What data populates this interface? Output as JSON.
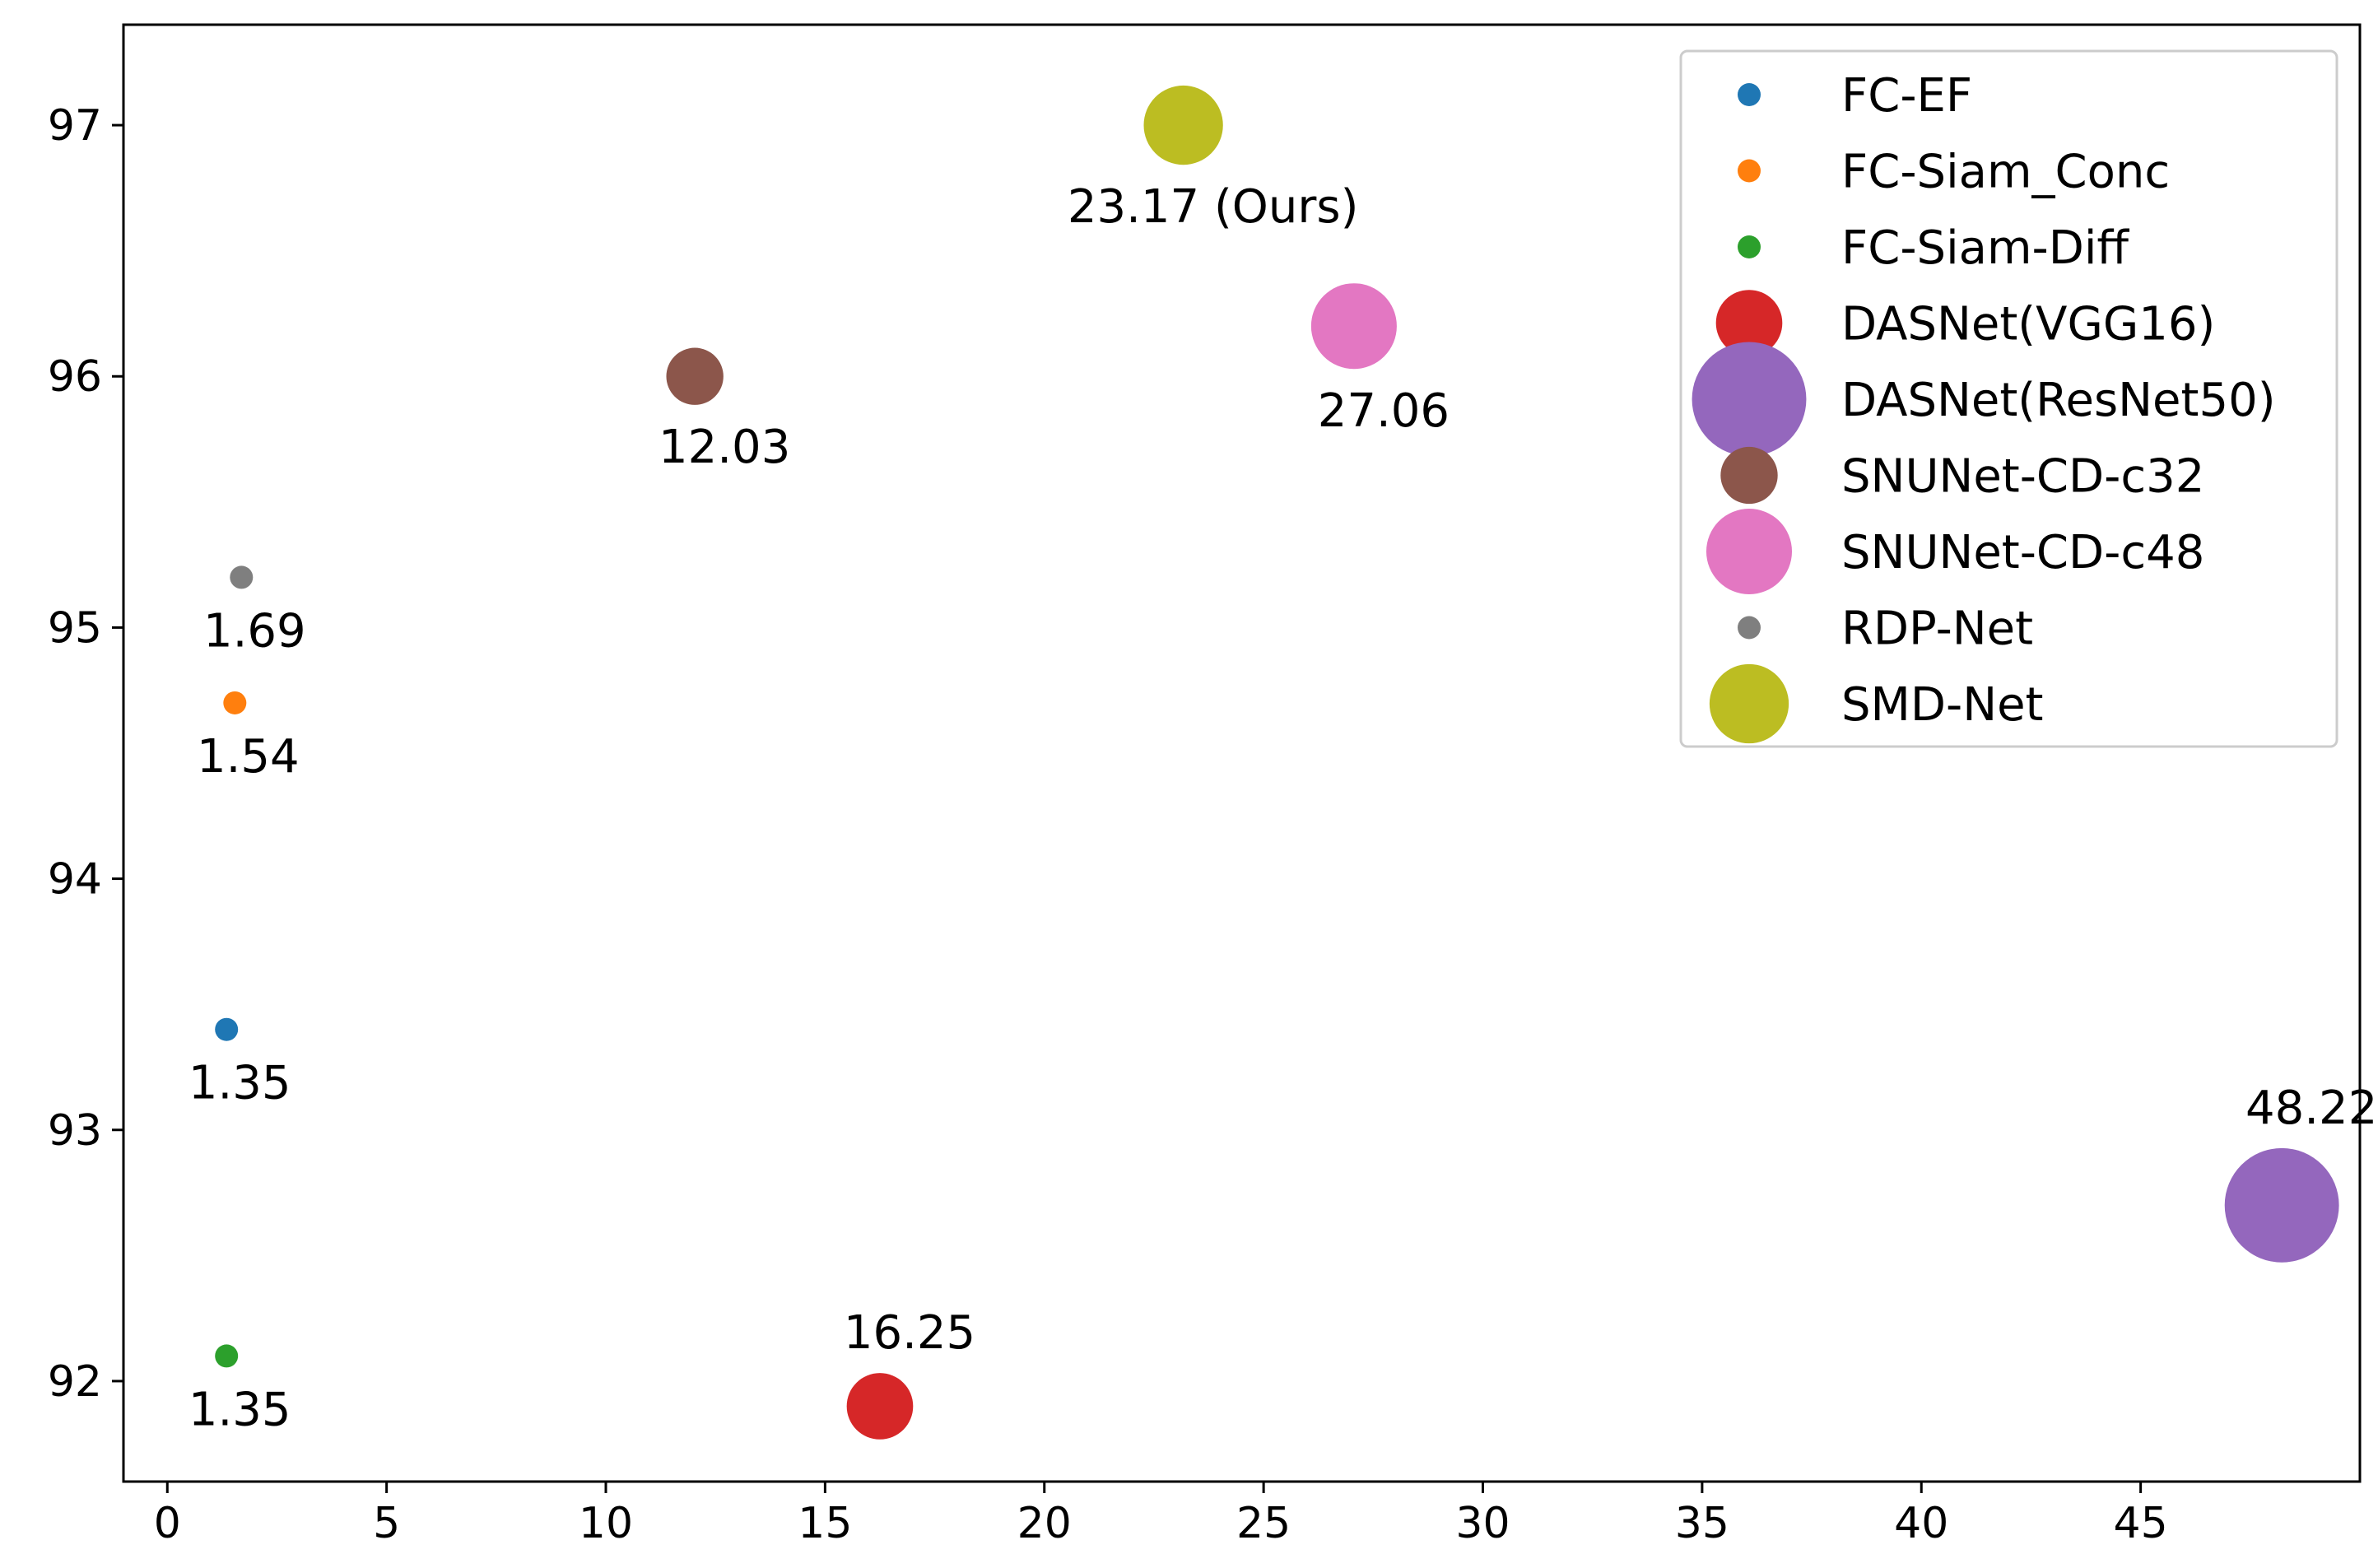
{
  "chart_data": {
    "type": "scatter",
    "title": "",
    "xlabel": "",
    "ylabel": "",
    "xlim": [
      -1.0,
      50.0
    ],
    "ylim": [
      91.6,
      97.4
    ],
    "xticks": [
      0,
      5,
      10,
      15,
      20,
      25,
      30,
      35,
      40,
      45
    ],
    "yticks": [
      92,
      93,
      94,
      95,
      96,
      97
    ],
    "legend_position": "top-right",
    "grid": false,
    "size_variable": "Params (M)",
    "series": [
      {
        "name": "FC-EF",
        "color": "#1f77b4",
        "x": 1.35,
        "y": 93.4,
        "size": 1.35,
        "label": "1.35"
      },
      {
        "name": "FC-Siam_Conc",
        "color": "#ff7f0e",
        "x": 1.54,
        "y": 94.7,
        "size": 1.54,
        "label": "1.54"
      },
      {
        "name": "FC-Siam-Diff",
        "color": "#2ca02c",
        "x": 1.35,
        "y": 92.1,
        "size": 1.35,
        "label": "1.35"
      },
      {
        "name": "DASNet(VGG16)",
        "color": "#d62728",
        "x": 16.25,
        "y": 91.9,
        "size": 16.25,
        "label": "16.25"
      },
      {
        "name": "DASNet(ResNet50)",
        "color": "#9467bd",
        "x": 48.22,
        "y": 92.7,
        "size": 48.22,
        "label": "48.22"
      },
      {
        "name": "SNUNet-CD-c32",
        "color": "#8c564b",
        "x": 12.03,
        "y": 96.0,
        "size": 12.03,
        "label": "12.03"
      },
      {
        "name": "SNUNet-CD-c48",
        "color": "#e377c2",
        "x": 27.06,
        "y": 96.2,
        "size": 27.06,
        "label": "27.06"
      },
      {
        "name": "RDP-Net",
        "color": "#7f7f7f",
        "x": 1.69,
        "y": 95.2,
        "size": 1.69,
        "label": "1.69"
      },
      {
        "name": "SMD-Net",
        "color": "#bcbd22",
        "x": 23.17,
        "y": 97.0,
        "size": 23.17,
        "label": "23.17 (Ours)"
      }
    ]
  }
}
